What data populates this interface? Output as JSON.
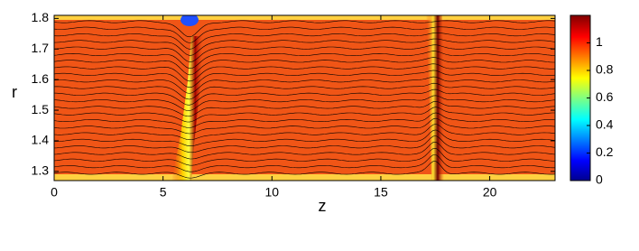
{
  "chart_data": {
    "type": "heatmap",
    "colormap": "jet",
    "x_label": "z",
    "y_label": "r",
    "xlim": [
      0,
      23
    ],
    "ylim": [
      1.27,
      1.81
    ],
    "xticks": [
      0,
      5,
      10,
      15,
      20
    ],
    "yticks": [
      1.3,
      1.4,
      1.5,
      1.6,
      1.7,
      1.8
    ],
    "clim": [
      0,
      1.2
    ],
    "cticks": [
      0,
      0.2,
      0.4,
      0.6,
      0.8,
      1
    ]
  }
}
